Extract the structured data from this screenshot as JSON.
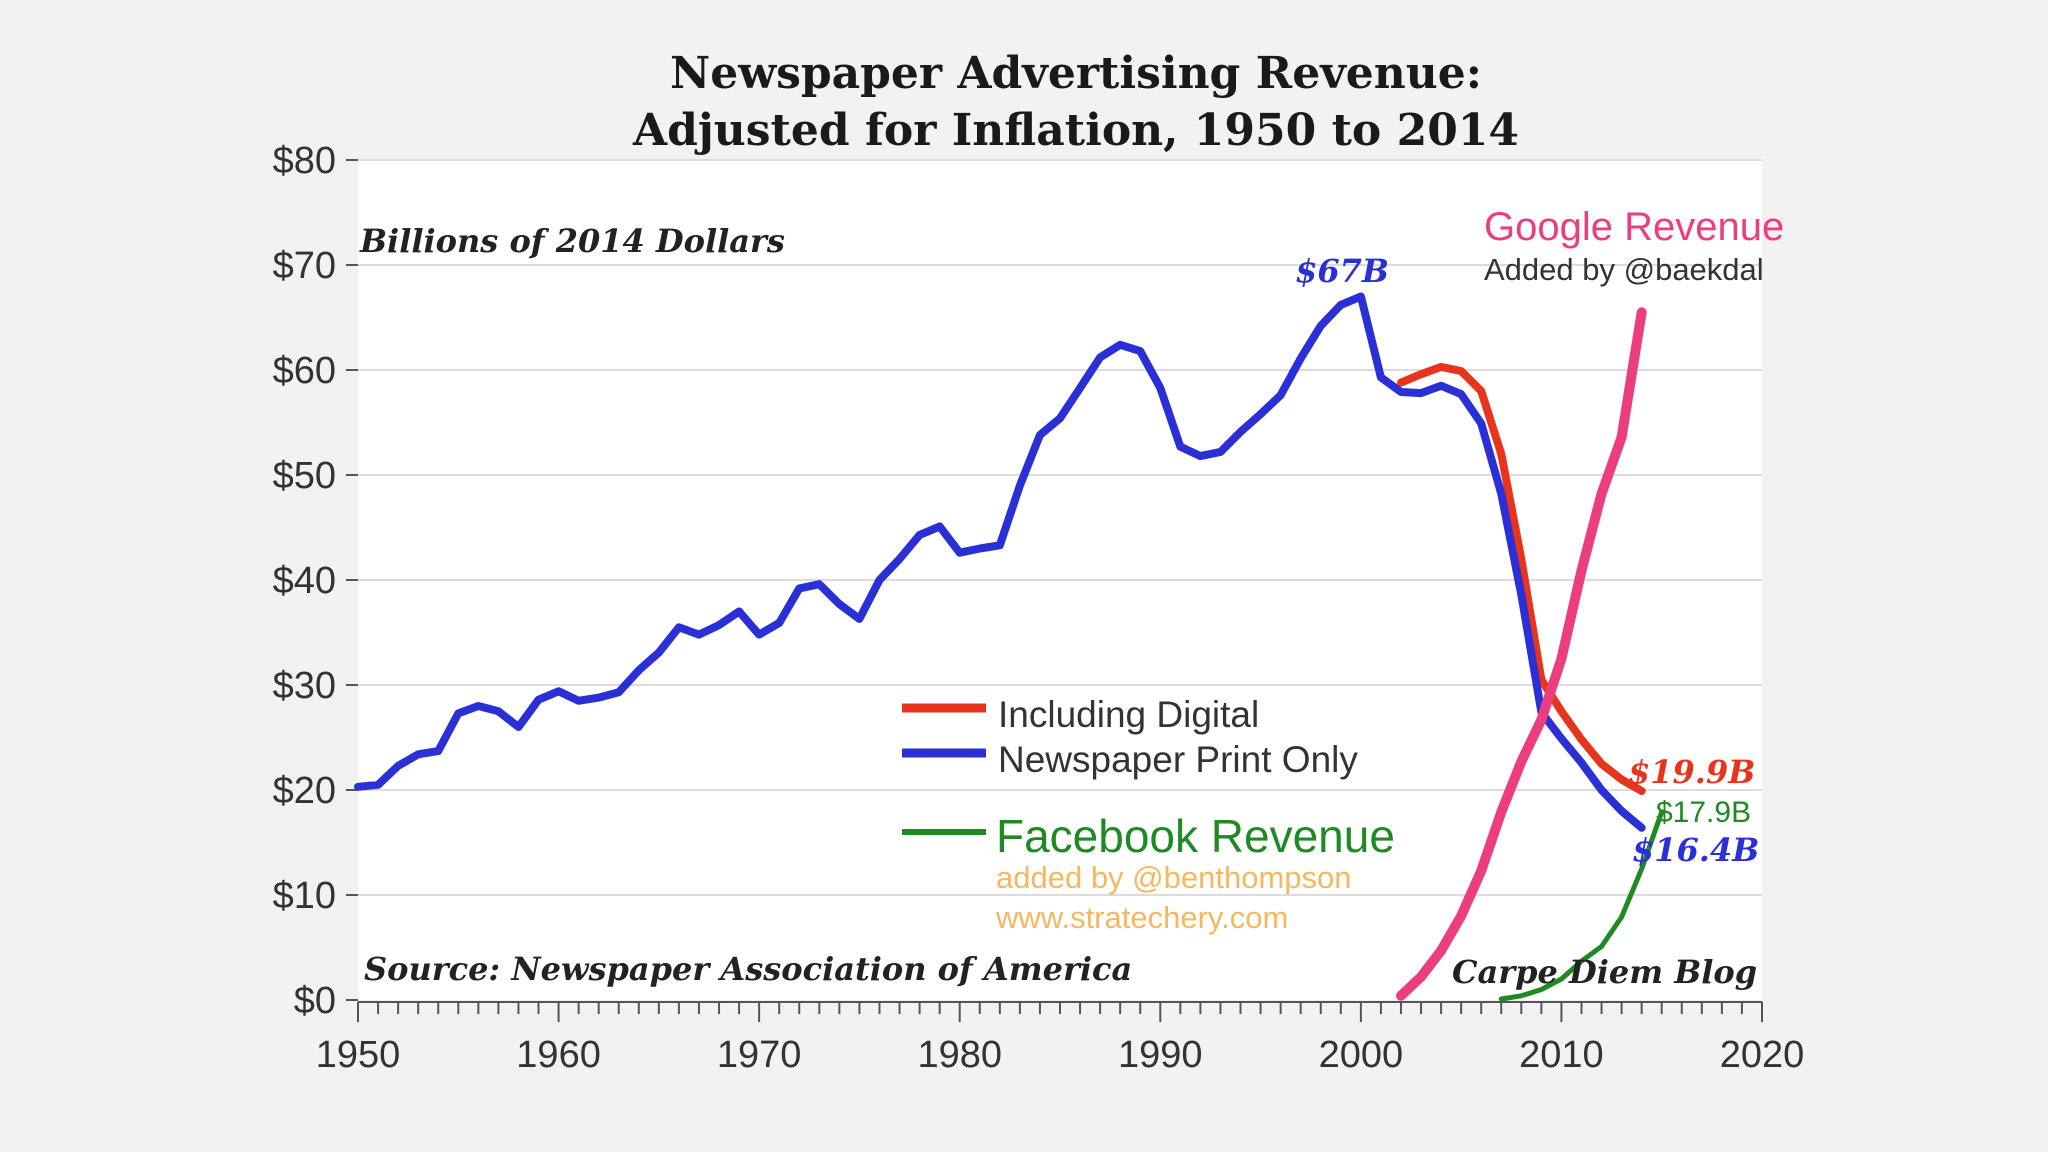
{
  "chart_data": {
    "type": "line",
    "title": [
      "Newspaper Advertising Revenue:",
      "Adjusted for Inflation, 1950 to 2014"
    ],
    "ylabel": "Billions of 2014 Dollars",
    "source": "Source: Newspaper Association of America",
    "credit": "Carpe Diem Blog",
    "xlim": [
      1950,
      2020
    ],
    "ylim": [
      0,
      80
    ],
    "x_ticks": [
      1950,
      1960,
      1970,
      1980,
      1990,
      2000,
      2010,
      2020
    ],
    "x_tick_labels": [
      "1950",
      "1960",
      "1970",
      "1980",
      "1990",
      "2000",
      "2010",
      "2020"
    ],
    "y_ticks": [
      0,
      10,
      20,
      30,
      40,
      50,
      60,
      70,
      80
    ],
    "y_tick_labels": [
      "$0",
      "$10",
      "$20",
      "$30",
      "$40",
      "$50",
      "$60",
      "$70",
      "$80"
    ],
    "series": [
      {
        "name": "Newspaper Print Only",
        "color": "#2b2fd6",
        "x": [
          1950,
          1951,
          1952,
          1953,
          1954,
          1955,
          1956,
          1957,
          1958,
          1959,
          1960,
          1961,
          1962,
          1963,
          1964,
          1965,
          1966,
          1967,
          1968,
          1969,
          1970,
          1971,
          1972,
          1973,
          1974,
          1975,
          1976,
          1977,
          1978,
          1979,
          1980,
          1981,
          1982,
          1983,
          1984,
          1985,
          1986,
          1987,
          1988,
          1989,
          1990,
          1991,
          1992,
          1993,
          1994,
          1995,
          1996,
          1997,
          1998,
          1999,
          2000,
          2001,
          2002,
          2003,
          2004,
          2005,
          2006,
          2007,
          2008,
          2009,
          2010,
          2011,
          2012,
          2013,
          2014
        ],
        "values": [
          20.3,
          20.5,
          22.3,
          23.4,
          23.7,
          27.3,
          28.0,
          27.5,
          26.0,
          28.6,
          29.4,
          28.5,
          28.8,
          29.3,
          31.4,
          33.1,
          35.5,
          34.8,
          35.7,
          37.0,
          34.8,
          35.9,
          39.2,
          39.6,
          37.7,
          36.3,
          40.0,
          42.0,
          44.3,
          45.1,
          42.6,
          43.0,
          43.3,
          49.0,
          53.8,
          55.4,
          58.3,
          61.2,
          62.4,
          61.8,
          58.3,
          52.7,
          51.8,
          52.2,
          54.1,
          55.8,
          57.6,
          61.1,
          64.2,
          66.2,
          67.0,
          59.3,
          57.9,
          57.8,
          58.5,
          57.7,
          54.9,
          48.2,
          38.6,
          27.4,
          24.9,
          22.6,
          20.0,
          18.0,
          16.4
        ]
      },
      {
        "name": "Including Digital",
        "color": "#e8341c",
        "x": [
          2002,
          2003,
          2004,
          2005,
          2006,
          2007,
          2008,
          2009,
          2010,
          2011,
          2012,
          2013,
          2014
        ],
        "values": [
          58.8,
          59.6,
          60.3,
          59.9,
          58.0,
          52.0,
          42.0,
          30.5,
          27.5,
          24.8,
          22.5,
          21.0,
          19.9
        ]
      },
      {
        "name": "Google Revenue",
        "color": "#ec3e7e",
        "x": [
          2002,
          2003,
          2004,
          2005,
          2006,
          2007,
          2008,
          2009,
          2010,
          2011,
          2012,
          2013,
          2014
        ],
        "values": [
          0.4,
          2.2,
          4.7,
          8.0,
          12.3,
          17.9,
          22.7,
          26.7,
          32.5,
          40.9,
          48.2,
          53.6,
          65.5
        ]
      },
      {
        "name": "Facebook Revenue",
        "color": "#1f8a22",
        "x": [
          2007,
          2008,
          2009,
          2010,
          2011,
          2012,
          2013,
          2014,
          2015
        ],
        "values": [
          0.1,
          0.4,
          1.0,
          2.0,
          3.7,
          5.1,
          7.9,
          12.5,
          17.9
        ]
      }
    ],
    "legend": [
      {
        "label": "Including Digital",
        "color": "#e8341c"
      },
      {
        "label": "Newspaper Print Only",
        "color": "#2b2fd6"
      }
    ],
    "annotations": {
      "peak": {
        "text": "$67B",
        "x": 2000,
        "y": 67.0,
        "color": "#2b2fd6"
      },
      "digital_end": {
        "text": "$19.9B",
        "x": 2014,
        "y": 19.9,
        "color": "#e8341c"
      },
      "print_end": {
        "text": "$16.4B",
        "x": 2014,
        "y": 16.4,
        "color": "#2b2fd6"
      },
      "facebook_end": {
        "text": "$17.9B",
        "x": 2015,
        "y": 17.9,
        "color": "#1f8a22"
      },
      "google_title": {
        "text": "Google Revenue",
        "color": "#ec3e7e"
      },
      "google_credit": {
        "text": "Added by @baekdal"
      },
      "facebook_title": {
        "text": "Facebook Revenue",
        "color": "#1f8a22"
      },
      "facebook_credit": {
        "text": "added by @benthompson",
        "color": "#f4b860"
      },
      "facebook_site": {
        "text": "www.stratechery.com",
        "color": "#f4b860"
      }
    }
  }
}
